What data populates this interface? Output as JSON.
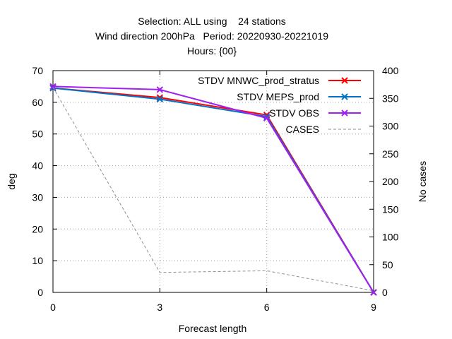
{
  "chart_data": {
    "type": "line",
    "title_lines": [
      "Selection: ALL using    24 stations",
      "Wind direction 200hPa   Period: 20220930-20221019",
      "Hours: {00}"
    ],
    "xlabel": "Forecast length",
    "ylabel": "deg",
    "y2label": "No cases",
    "x": [
      0,
      3,
      6,
      9
    ],
    "xlim": [
      0,
      9
    ],
    "ylim": [
      0,
      70
    ],
    "y2lim": [
      0,
      400
    ],
    "xticks": [
      "0",
      "3",
      "6",
      "9"
    ],
    "yticks": [
      "0",
      "10",
      "20",
      "30",
      "40",
      "50",
      "60",
      "70"
    ],
    "y2ticks": [
      "0",
      "50",
      "100",
      "150",
      "200",
      "250",
      "300",
      "350",
      "400"
    ],
    "grid": true,
    "legend_position": "top-right",
    "series": [
      {
        "name": "STDV MNWC_prod_stratus",
        "axis": "y1",
        "color": "#ff0000",
        "marker": "x",
        "values": [
          64.5,
          61.5,
          56.0,
          0.0
        ]
      },
      {
        "name": "STDV MEPS_prod",
        "axis": "y1",
        "color": "#0073c8",
        "marker": "x",
        "values": [
          64.5,
          61.0,
          55.5,
          0.0
        ]
      },
      {
        "name": "STDV OBS",
        "axis": "y1",
        "color": "#a020f0",
        "marker": "x",
        "values": [
          65.0,
          64.0,
          55.0,
          0.0
        ]
      },
      {
        "name": "CASES",
        "axis": "y2",
        "color": "#909090",
        "marker": "none",
        "dashed": true,
        "values": [
          370,
          36,
          39,
          3
        ]
      }
    ]
  }
}
